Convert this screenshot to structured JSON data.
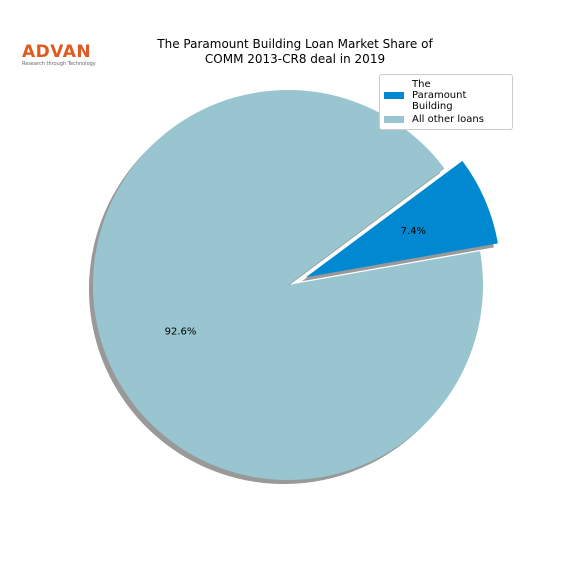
{
  "logo": {
    "name": "ADVAN",
    "tagline": "Research through Technology"
  },
  "chart_data": {
    "type": "pie",
    "title": "The Paramount Building Loan Market Share of\nCOMM 2013-CR8 deal in 2019",
    "categories": [
      "The\nParamount Building",
      "All other loans"
    ],
    "values": [
      7.4,
      92.6
    ],
    "value_labels": [
      "7.4%",
      "92.6%"
    ],
    "colors": [
      "#0089d1",
      "#98c5cf"
    ],
    "shadow": true,
    "legend": "upper right"
  }
}
